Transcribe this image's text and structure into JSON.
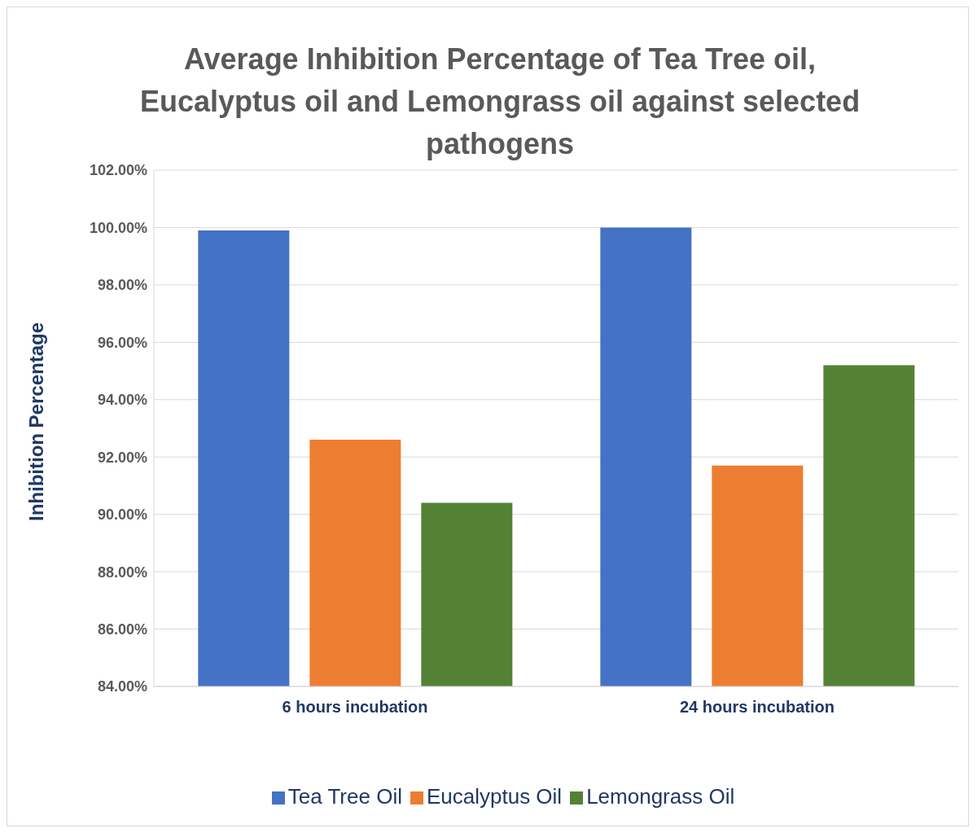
{
  "chart_data": {
    "type": "bar",
    "title": "Average Inhibition Percentage of Tea Tree oil, Eucalyptus oil and Lemongrass oil against selected pathogens",
    "ylabel": "Inhibition Percentage",
    "categories": [
      "6 hours incubation",
      "24 hours incubation"
    ],
    "series": [
      {
        "name": "Tea Tree Oil",
        "color": "#4472c4",
        "values": [
          99.9,
          100.0
        ]
      },
      {
        "name": "Eucalyptus Oil",
        "color": "#ed7d31",
        "values": [
          92.6,
          91.7
        ]
      },
      {
        "name": "Lemongrass Oil",
        "color": "#548235",
        "values": [
          90.4,
          95.2
        ]
      }
    ],
    "ylim": [
      84,
      102
    ],
    "yticks": [
      {
        "value": 84,
        "label": "84.00%"
      },
      {
        "value": 86,
        "label": "86.00%"
      },
      {
        "value": 88,
        "label": "88.00%"
      },
      {
        "value": 90,
        "label": "90.00%"
      },
      {
        "value": 92,
        "label": "92.00%"
      },
      {
        "value": 94,
        "label": "94.00%"
      },
      {
        "value": 96,
        "label": "96.00%"
      },
      {
        "value": 98,
        "label": "98.00%"
      },
      {
        "value": 100,
        "label": "100.00%"
      },
      {
        "value": 102,
        "label": "102.00%"
      }
    ],
    "grid": "y",
    "legend": "bottom"
  }
}
